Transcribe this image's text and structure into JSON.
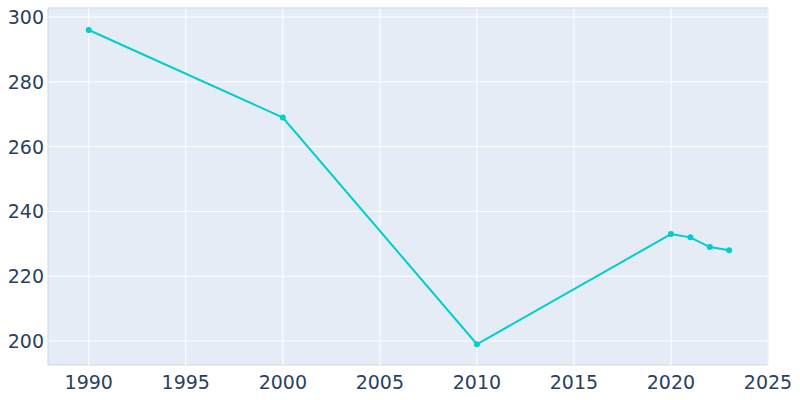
{
  "chart_data": {
    "type": "line",
    "x": [
      1990,
      2000,
      2010,
      2020,
      2021,
      2022,
      2023
    ],
    "values": [
      296,
      269,
      199,
      233,
      232,
      229,
      228
    ],
    "color": "#00cdcd",
    "marker": "circle",
    "xlim": [
      1987.9,
      2025
    ],
    "xticks": [
      1990,
      1995,
      2000,
      2005,
      2010,
      2015,
      2020,
      2025
    ],
    "ylim": [
      192.6,
      302.8
    ],
    "yticks": [
      200,
      220,
      240,
      260,
      280,
      300
    ],
    "grid": true
  }
}
